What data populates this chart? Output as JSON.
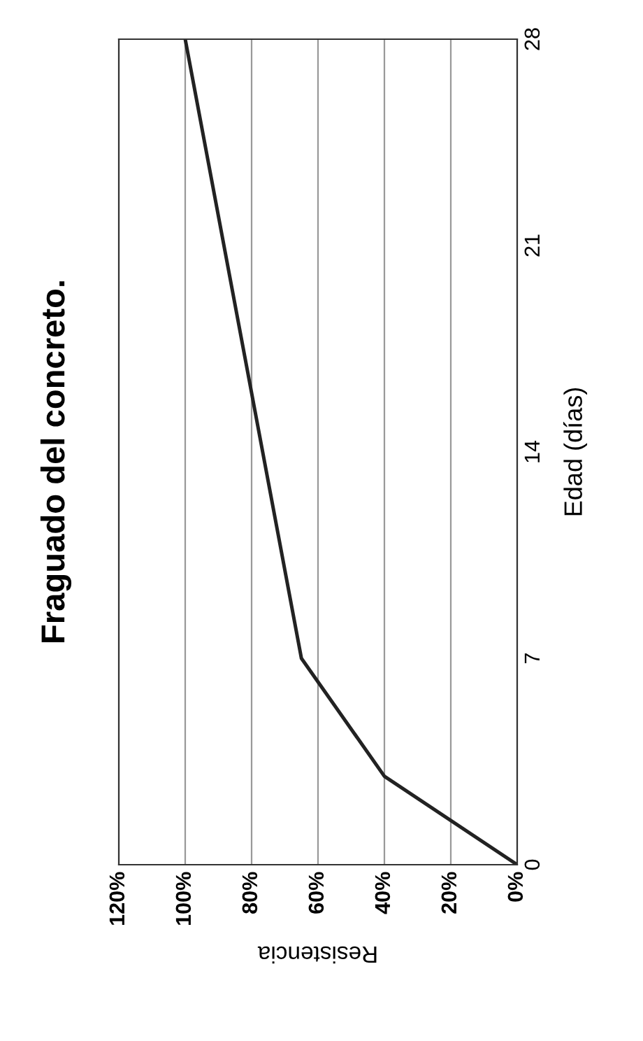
{
  "chart_data": {
    "type": "line",
    "title": "Fraguado del concreto.",
    "xlabel": "Resistencia",
    "ylabel": "Edad (días)",
    "x": [
      0,
      40,
      65,
      100
    ],
    "series": [
      {
        "color": "#222222",
        "values": [
          0,
          3,
          7,
          28
        ]
      }
    ],
    "xlim": [
      120,
      0
    ],
    "xticks": [
      {
        "value": 0,
        "label": "0%"
      },
      {
        "value": 20,
        "label": "20%"
      },
      {
        "value": 40,
        "label": "40%"
      },
      {
        "value": 60,
        "label": "60%"
      },
      {
        "value": 80,
        "label": "80%"
      },
      {
        "value": 100,
        "label": "100%"
      },
      {
        "value": 120,
        "label": "120%"
      }
    ],
    "ylim": [
      0,
      28
    ],
    "yticks": [
      0,
      7,
      14,
      21,
      28
    ],
    "grid": "x",
    "legend": false,
    "marker": "none",
    "line_style": "solid"
  }
}
